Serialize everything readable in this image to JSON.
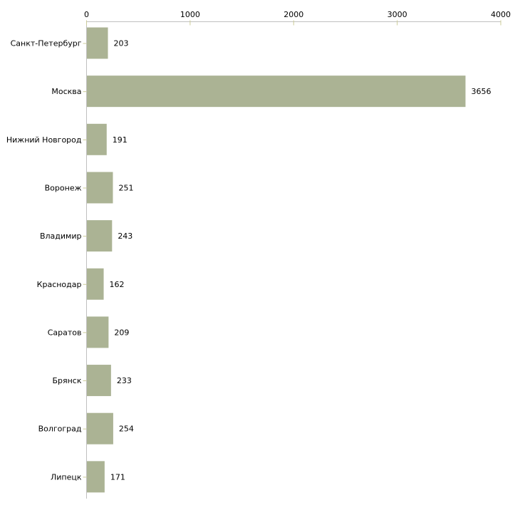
{
  "chart_data": {
    "type": "bar",
    "orientation": "horizontal",
    "title": "",
    "xlabel": "",
    "ylabel": "",
    "categories": [
      "Санкт-Петербург",
      "Москва",
      "Нижний Новгород",
      "Воронеж",
      "Владимир",
      "Краснодар",
      "Саратов",
      "Брянск",
      "Волгоград",
      "Липецк"
    ],
    "values": [
      203,
      3656,
      191,
      251,
      243,
      162,
      209,
      233,
      254,
      171
    ],
    "value_labels": [
      "203",
      "3656",
      "191",
      "251",
      "243",
      "162",
      "209",
      "233",
      "254",
      "171"
    ],
    "xlim": [
      0,
      4000
    ],
    "xticks": [
      0,
      1000,
      2000,
      3000,
      4000
    ],
    "xtick_labels": [
      "0",
      "1000",
      "2000",
      "3000",
      "4000"
    ],
    "axis_position": "top",
    "grid": false,
    "legend": null,
    "colors": {
      "bar_fill": "#abb394",
      "axis_line": "#c0c0c0",
      "tick_mark": "#cccc99",
      "text": "#000000",
      "background": "#ffffff"
    }
  }
}
